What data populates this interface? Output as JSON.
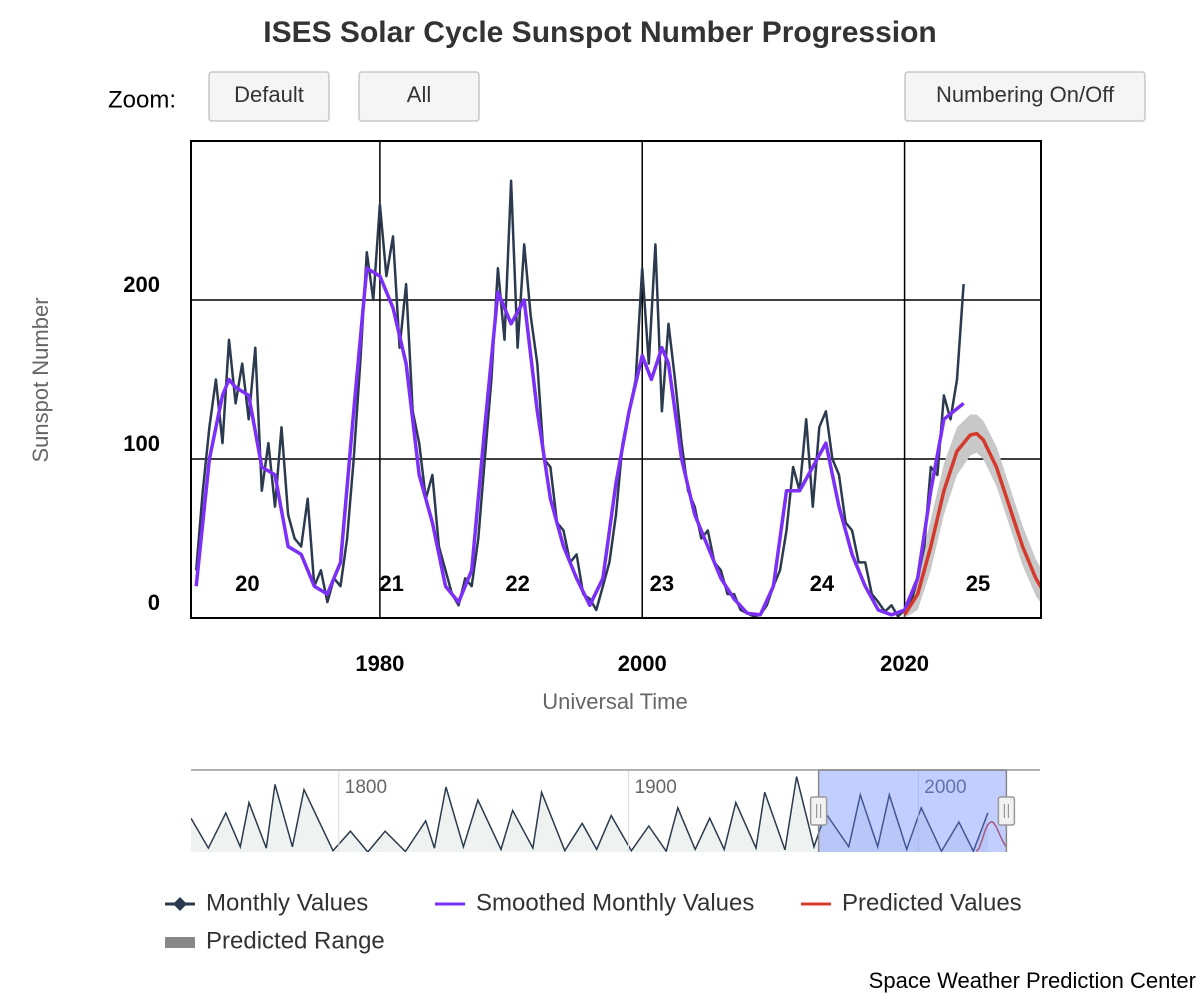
{
  "chart_data": {
    "type": "line",
    "title": "ISES Solar Cycle Sunspot Number Progression",
    "zoom_label": "Zoom:",
    "buttons": [
      "Default",
      "All",
      "Numbering On/Off"
    ],
    "x_label": "Universal Time",
    "y_label": "Sunspot Number",
    "credit": "Space Weather Prediction Center",
    "xlim": [
      1965.6,
      2030.4
    ],
    "xticks": [
      1980,
      2000,
      2020
    ],
    "ylim": [
      0,
      300
    ],
    "yticks": [
      0,
      100,
      200
    ],
    "grid": true,
    "series": [
      {
        "name": "Monthly Values",
        "color": "#2b3a4e",
        "x": [
          1966,
          1966.5,
          1967,
          1967.5,
          1968,
          1968.5,
          1969,
          1969.5,
          1970,
          1970.5,
          1971,
          1971.5,
          1972,
          1972.5,
          1973,
          1973.5,
          1974,
          1974.5,
          1975,
          1975.5,
          1976,
          1976.5,
          1977,
          1977.5,
          1978,
          1978.5,
          1979,
          1979.5,
          1980,
          1980.5,
          1981,
          1981.5,
          1982,
          1982.5,
          1983,
          1983.5,
          1984,
          1984.5,
          1985,
          1985.5,
          1986,
          1986.5,
          1987,
          1987.5,
          1988,
          1988.5,
          1989,
          1989.5,
          1990,
          1990.5,
          1991,
          1991.5,
          1992,
          1992.5,
          1993,
          1993.5,
          1994,
          1994.5,
          1995,
          1995.5,
          1996,
          1996.5,
          1997,
          1997.5,
          1998,
          1998.5,
          1999,
          1999.5,
          2000,
          2000.5,
          2001,
          2001.5,
          2002,
          2002.5,
          2003,
          2003.5,
          2004,
          2004.5,
          2005,
          2005.5,
          2006,
          2006.5,
          2007,
          2007.5,
          2008,
          2008.5,
          2009,
          2009.5,
          2010,
          2010.5,
          2011,
          2011.5,
          2012,
          2012.5,
          2013,
          2013.5,
          2014,
          2014.5,
          2015,
          2015.5,
          2016,
          2016.5,
          2017,
          2017.5,
          2018,
          2018.5,
          2019,
          2019.5,
          2020,
          2020.5,
          2021,
          2021.5,
          2022,
          2022.5,
          2023,
          2023.5,
          2024,
          2024.5
        ],
        "values": [
          30,
          80,
          120,
          150,
          110,
          175,
          135,
          160,
          125,
          170,
          80,
          110,
          70,
          120,
          65,
          50,
          45,
          75,
          20,
          30,
          10,
          25,
          20,
          50,
          100,
          160,
          230,
          200,
          260,
          215,
          240,
          170,
          210,
          130,
          110,
          75,
          90,
          45,
          30,
          15,
          8,
          25,
          20,
          50,
          100,
          150,
          220,
          175,
          275,
          170,
          235,
          190,
          160,
          100,
          95,
          60,
          55,
          35,
          40,
          15,
          12,
          5,
          20,
          35,
          65,
          110,
          130,
          150,
          220,
          160,
          235,
          130,
          185,
          150,
          110,
          80,
          70,
          50,
          55,
          35,
          30,
          15,
          15,
          5,
          3,
          1,
          2,
          8,
          20,
          30,
          55,
          95,
          80,
          125,
          70,
          120,
          130,
          100,
          90,
          60,
          55,
          35,
          35,
          15,
          10,
          4,
          8,
          1,
          5,
          10,
          25,
          45,
          95,
          90,
          140,
          125,
          150,
          210
        ]
      },
      {
        "name": "Smoothed Monthly Values",
        "color": "#7b2ff7",
        "x": [
          1966,
          1967,
          1968,
          1968.5,
          1969,
          1970,
          1971,
          1972,
          1973,
          1974,
          1975,
          1976,
          1977,
          1978,
          1979,
          1980,
          1981,
          1982,
          1983,
          1984,
          1985,
          1986,
          1987,
          1988,
          1989,
          1990,
          1991,
          1992,
          1993,
          1994,
          1995,
          1996,
          1997,
          1998,
          1999,
          2000,
          2000.7,
          2001.5,
          2002,
          2003,
          2004,
          2005,
          2006,
          2007,
          2008,
          2009,
          2010,
          2011,
          2012,
          2013,
          2014,
          2015,
          2016,
          2017,
          2018,
          2019,
          2020,
          2021,
          2022,
          2023,
          2024.5
        ],
        "values": [
          20,
          100,
          140,
          150,
          145,
          140,
          95,
          90,
          45,
          40,
          20,
          15,
          35,
          130,
          220,
          215,
          195,
          160,
          90,
          60,
          20,
          10,
          30,
          120,
          205,
          185,
          200,
          130,
          75,
          45,
          25,
          8,
          25,
          85,
          130,
          165,
          150,
          170,
          160,
          100,
          65,
          45,
          25,
          12,
          3,
          2,
          20,
          80,
          80,
          95,
          110,
          70,
          40,
          20,
          5,
          2,
          5,
          25,
          80,
          125,
          135
        ]
      },
      {
        "name": "Predicted Values",
        "color": "#d33a2c",
        "x": [
          2020,
          2021,
          2022,
          2023,
          2024,
          2025,
          2025.5,
          2026,
          2027,
          2028,
          2029,
          2030,
          2030.5
        ],
        "values": [
          2,
          15,
          45,
          80,
          105,
          115,
          116,
          112,
          95,
          70,
          45,
          25,
          18
        ]
      },
      {
        "name": "Predicted Range",
        "color": "#c8c8c8",
        "legend_color": "#888888",
        "x": [
          2020,
          2021,
          2022,
          2023,
          2024,
          2025,
          2025.5,
          2026,
          2027,
          2028,
          2029,
          2030,
          2030.5
        ],
        "lower": [
          0,
          5,
          30,
          65,
          90,
          102,
          104,
          100,
          83,
          58,
          33,
          14,
          8
        ],
        "upper": [
          8,
          28,
          62,
          97,
          120,
          128,
          128,
          124,
          108,
          83,
          58,
          37,
          30
        ]
      }
    ],
    "annotations": [
      {
        "text": "20",
        "x": 1969.9
      },
      {
        "text": "21",
        "x": 1980.9
      },
      {
        "text": "22",
        "x": 1990.5
      },
      {
        "text": "23",
        "x": 2001.5
      },
      {
        "text": "24",
        "x": 2013.7
      },
      {
        "text": "25",
        "x": 2025.6
      }
    ],
    "navigator": {
      "color": "#2b3a4e",
      "xlim": [
        1749,
        2042
      ],
      "ylim": [
        0,
        300
      ],
      "xticks": [
        1800,
        1900,
        2000
      ],
      "x": [
        1749,
        1755,
        1761,
        1766,
        1769,
        1775,
        1778,
        1784,
        1788,
        1798,
        1804,
        1810,
        1816,
        1823,
        1830,
        1833,
        1837,
        1843,
        1848,
        1856,
        1860,
        1867,
        1870,
        1878,
        1884,
        1889,
        1894,
        1901,
        1907,
        1913,
        1917,
        1923,
        1928,
        1933,
        1937,
        1944,
        1947,
        1954,
        1958,
        1964,
        1968,
        1976,
        1980,
        1986,
        1990,
        1996,
        2001,
        2008,
        2014,
        2019,
        2024
      ],
      "values": [
        130,
        15,
        150,
        20,
        190,
        15,
        260,
        20,
        240,
        5,
        80,
        0,
        80,
        2,
        120,
        15,
        250,
        20,
        200,
        10,
        160,
        15,
        230,
        5,
        110,
        10,
        140,
        5,
        100,
        3,
        170,
        10,
        130,
        10,
        190,
        15,
        230,
        8,
        290,
        20,
        150,
        20,
        220,
        20,
        220,
        10,
        170,
        3,
        115,
        3,
        150
      ]
    }
  }
}
